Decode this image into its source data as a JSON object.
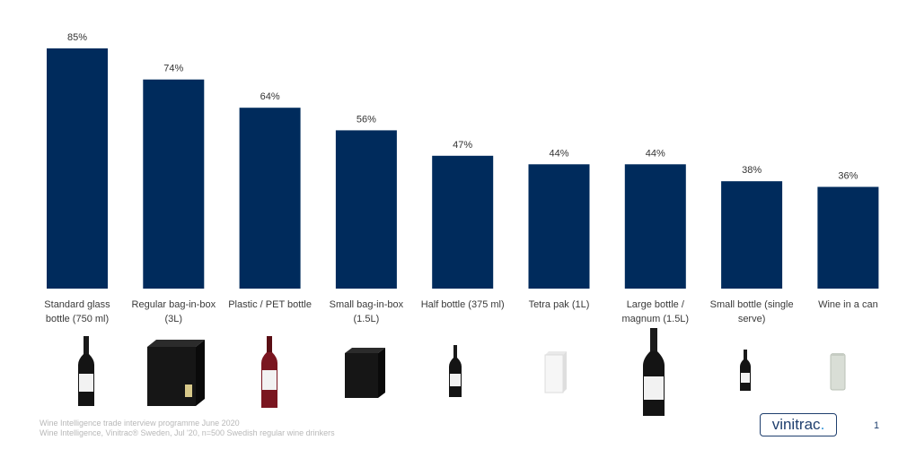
{
  "chart_data": {
    "type": "bar",
    "title": "",
    "xlabel": "",
    "ylabel": "",
    "ylim": [
      0,
      100
    ],
    "grid": false,
    "bar_color": "#002B5C",
    "categories": [
      "Standard glass bottle (750 ml)",
      "Regular bag-in-box (3L)",
      "Plastic / PET bottle",
      "Small bag-in-box (1.5L)",
      "Half bottle (375 ml)",
      "Tetra pak (1L)",
      "Large bottle / magnum (1.5L)",
      "Small bottle (single serve)",
      "Wine in a can"
    ],
    "values": [
      85,
      74,
      64,
      56,
      47,
      44,
      44,
      38,
      36
    ],
    "data_labels": [
      "85%",
      "74%",
      "64%",
      "56%",
      "47%",
      "44%",
      "44%",
      "38%",
      "36%"
    ]
  },
  "category_lines": [
    [
      "Standard glass",
      "bottle (750 ml)"
    ],
    [
      "Regular bag-in-box",
      "(3L)"
    ],
    [
      "Plastic / PET bottle",
      ""
    ],
    [
      "Small bag-in-box",
      "(1.5L)"
    ],
    [
      "Half bottle (375 ml)",
      ""
    ],
    [
      "Tetra pak (1L)",
      ""
    ],
    [
      "Large bottle /",
      "magnum (1.5L)"
    ],
    [
      "Small bottle (single",
      "serve)"
    ],
    [
      "Wine in a can",
      ""
    ]
  ],
  "package_icons": [
    "wine-bottle-icon",
    "bag-in-box-icon",
    "pet-bottle-icon",
    "small-bag-in-box-icon",
    "half-bottle-icon",
    "tetra-pak-icon",
    "magnum-bottle-icon",
    "single-serve-bottle-icon",
    "wine-can-icon"
  ],
  "footer": {
    "source_line1": "Wine Intelligence trade interview programme June 2020",
    "source_line2": "Wine Intelligence, Vinitrac® Sweden, Jul '20, n=500 Swedish regular wine drinkers"
  },
  "logo": {
    "text": "vinitrac",
    "mark": "."
  },
  "page_number": "1"
}
